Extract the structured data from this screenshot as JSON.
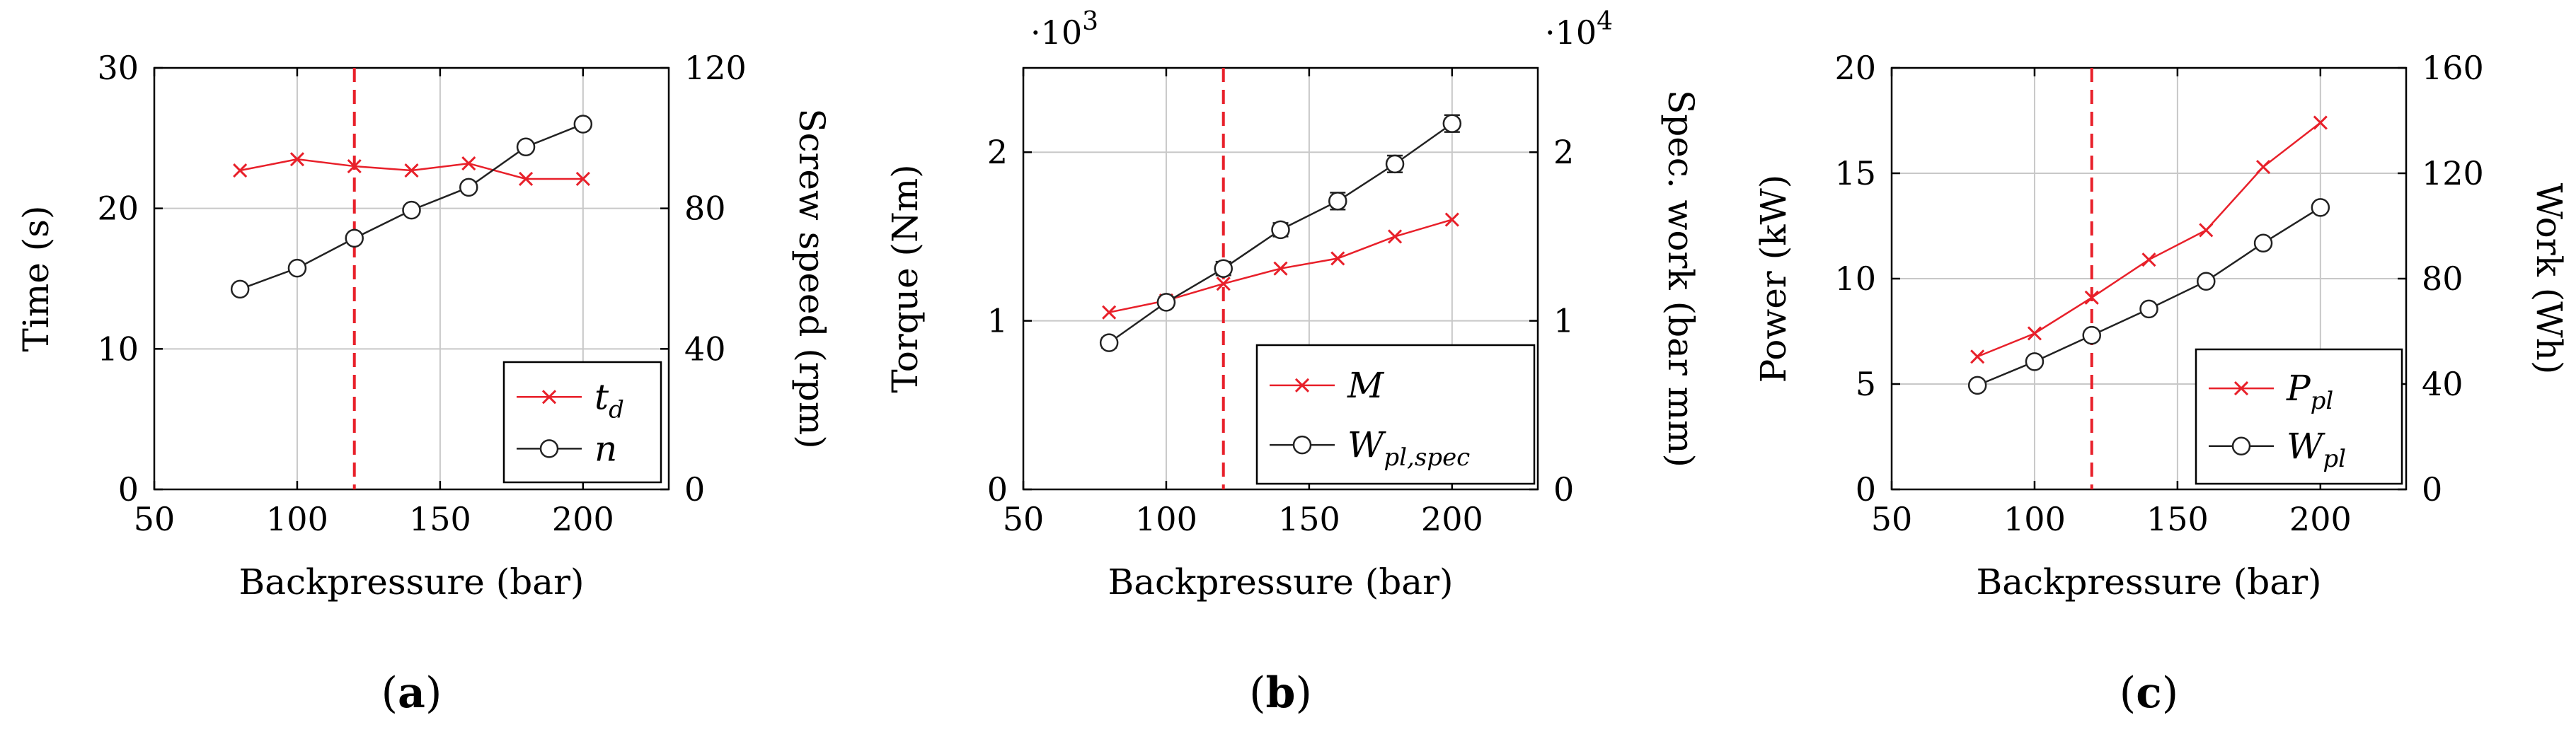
{
  "figure": {
    "panels": [
      {
        "id": "a",
        "caption": {
          "open": "(",
          "letter": "a",
          "close": ")"
        }
      },
      {
        "id": "b",
        "caption": {
          "open": "(",
          "letter": "b",
          "close": ")"
        }
      },
      {
        "id": "c",
        "caption": {
          "open": "(",
          "letter": "c",
          "close": ")"
        }
      }
    ]
  },
  "chart_data": [
    {
      "type": "line",
      "panel": "a",
      "xlabel": "Backpressure (bar)",
      "ylabel_left": "Time (s)",
      "ylabel_right": "Screw speed (rpm)",
      "xlim": [
        50,
        230
      ],
      "ylim_left": [
        0,
        30
      ],
      "ylim_right": [
        0,
        120
      ],
      "xticks": [
        50,
        100,
        150,
        200
      ],
      "yticks_left": [
        0,
        10,
        20,
        30
      ],
      "yticks_right": [
        0,
        40,
        80,
        120
      ],
      "grid": true,
      "legend_position": "bottom-right",
      "reference_line": {
        "x": 120,
        "color": "#e8202a",
        "style": "dashed"
      },
      "series": [
        {
          "name": "t",
          "sub": "d",
          "axis": "left",
          "marker": "x",
          "color": "#e8202a",
          "x": [
            80,
            100,
            120,
            140,
            160,
            180,
            200
          ],
          "values": [
            22.7,
            23.5,
            23.0,
            22.7,
            23.2,
            22.1,
            22.1
          ]
        },
        {
          "name": "n",
          "sub": "",
          "axis": "right",
          "marker": "o",
          "color": "#222222",
          "x": [
            80,
            100,
            120,
            140,
            160,
            180,
            200
          ],
          "values": [
            57,
            63,
            71.5,
            79.5,
            86,
            97.5,
            104
          ]
        }
      ]
    },
    {
      "type": "line",
      "panel": "b",
      "xlabel": "Backpressure (bar)",
      "ylabel_left": "Torque (Nm)",
      "ylabel_right": "Spec.  work (bar mm)",
      "xlim": [
        50,
        230
      ],
      "ylim_left": [
        0,
        2.5
      ],
      "ylim_right": [
        0,
        2.5
      ],
      "xticks": [
        50,
        100,
        150,
        200
      ],
      "yticks_left": [
        0,
        1,
        2
      ],
      "yticks_right": [
        0,
        1,
        2
      ],
      "multiplier_left": {
        "base": "·10",
        "exp": "3"
      },
      "multiplier_right": {
        "base": "·10",
        "exp": "4"
      },
      "grid": true,
      "legend_position": "bottom-right",
      "reference_line": {
        "x": 120,
        "color": "#e8202a",
        "style": "dashed"
      },
      "series": [
        {
          "name": "M",
          "sub": "",
          "axis": "left",
          "marker": "x",
          "color": "#e8202a",
          "x": [
            80,
            100,
            120,
            140,
            160,
            180,
            200
          ],
          "values": [
            1.05,
            1.12,
            1.22,
            1.31,
            1.37,
            1.5,
            1.6
          ]
        },
        {
          "name": "W",
          "sub": "pl,spec",
          "axis": "right",
          "marker": "o",
          "color": "#222222",
          "error_bars": [
            0.03,
            0.03,
            0.04,
            0.04,
            0.05,
            0.05,
            0.05
          ],
          "x": [
            80,
            100,
            120,
            140,
            160,
            180,
            200
          ],
          "values": [
            0.87,
            1.11,
            1.31,
            1.54,
            1.71,
            1.93,
            2.17
          ]
        }
      ]
    },
    {
      "type": "line",
      "panel": "c",
      "xlabel": "Backpressure (bar)",
      "ylabel_left": "Power (kW)",
      "ylabel_right": "Work (Wh)",
      "xlim": [
        50,
        230
      ],
      "ylim_left": [
        0,
        20
      ],
      "ylim_right": [
        0,
        160
      ],
      "xticks": [
        50,
        100,
        150,
        200
      ],
      "yticks_left": [
        0,
        5,
        10,
        15,
        20
      ],
      "yticks_right": [
        0,
        40,
        80,
        120,
        160
      ],
      "grid": true,
      "legend_position": "bottom-right",
      "reference_line": {
        "x": 120,
        "color": "#e8202a",
        "style": "dashed"
      },
      "series": [
        {
          "name": "P",
          "sub": "pl",
          "axis": "left",
          "marker": "x",
          "color": "#e8202a",
          "x": [
            80,
            100,
            120,
            140,
            160,
            180,
            200
          ],
          "values": [
            6.3,
            7.4,
            9.1,
            10.9,
            12.3,
            15.3,
            17.4
          ]
        },
        {
          "name": "W",
          "sub": "pl",
          "axis": "right",
          "marker": "o",
          "color": "#222222",
          "x": [
            80,
            100,
            120,
            140,
            160,
            180,
            200
          ],
          "values": [
            39.5,
            48.5,
            58.5,
            68.5,
            79,
            93.5,
            107
          ]
        }
      ]
    }
  ]
}
